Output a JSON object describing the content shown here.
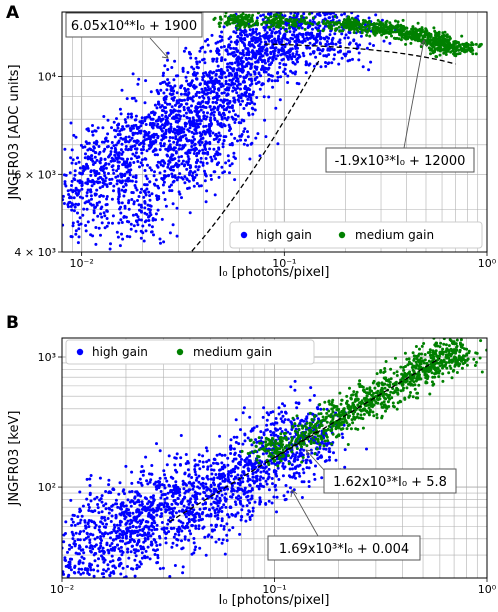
{
  "chart_data": [
    {
      "panel": "A",
      "type": "scatter",
      "xlabel": "I₀ [photons/pixel]",
      "ylabel": "JNGFR03 [ADC units]",
      "xscale": "log",
      "yscale": "log",
      "xlim": [
        0.008,
        1.0
      ],
      "ylim": [
        4000,
        14000
      ],
      "grid": true,
      "x_ticks": [
        {
          "value": 0.01,
          "label": "10⁻²"
        },
        {
          "value": 0.1,
          "label": "10⁻¹"
        },
        {
          "value": 1,
          "label": "10⁰"
        }
      ],
      "y_ticks": [
        {
          "value": 4000,
          "label": "4 × 10³"
        },
        {
          "value": 6000,
          "label": "6 × 10³"
        },
        {
          "value": 10000,
          "label": "10⁴"
        }
      ],
      "legend_placement": "lower-right",
      "series": [
        {
          "name": "high gain",
          "color": "#0000ff",
          "points": [
            [
              0.01,
              5200
            ],
            [
              0.012,
              6000
            ],
            [
              0.015,
              6600
            ],
            [
              0.02,
              7000
            ],
            [
              0.02,
              5000
            ],
            [
              0.025,
              7800
            ],
            [
              0.03,
              8500
            ],
            [
              0.03,
              6500
            ],
            [
              0.04,
              9200
            ],
            [
              0.04,
              7000
            ],
            [
              0.05,
              10000
            ],
            [
              0.05,
              8000
            ],
            [
              0.06,
              10600
            ],
            [
              0.07,
              11200
            ],
            [
              0.08,
              11800
            ],
            [
              0.1,
              12300
            ],
            [
              0.12,
              12800
            ],
            [
              0.15,
              13000
            ],
            [
              0.2,
              13300
            ]
          ]
        },
        {
          "name": "medium gain",
          "color": "#008000",
          "points": [
            [
              0.06,
              13400
            ],
            [
              0.1,
              13300
            ],
            [
              0.2,
              13100
            ],
            [
              0.3,
              12900
            ],
            [
              0.4,
              12600
            ],
            [
              0.5,
              12300
            ],
            [
              0.6,
              11900
            ],
            [
              0.7,
              11600
            ]
          ]
        }
      ],
      "fit_lines": [
        {
          "label": "6.05x10⁴*I₀ + 1900",
          "slope": 60500,
          "intercept": 1900,
          "x_range": [
            0.035,
            0.15
          ]
        },
        {
          "label": "-1.9x10³*I₀ + 12000",
          "slope": -1900,
          "intercept": 12000,
          "x_range": [
            0.08,
            0.7
          ]
        }
      ]
    },
    {
      "panel": "B",
      "type": "scatter",
      "xlabel": "I₀ [photons/pixel]",
      "ylabel": "JNGFR03 [keV]",
      "xscale": "log",
      "yscale": "log",
      "xlim": [
        0.01,
        1.0
      ],
      "ylim": [
        20,
        1400
      ],
      "grid": true,
      "x_ticks": [
        {
          "value": 0.01,
          "label": "10⁻²"
        },
        {
          "value": 0.1,
          "label": "10⁻¹"
        },
        {
          "value": 1,
          "label": "10⁰"
        }
      ],
      "y_ticks": [
        {
          "value": 100,
          "label": "10²"
        },
        {
          "value": 1000,
          "label": "10³"
        }
      ],
      "legend_placement": "upper-left",
      "series": [
        {
          "name": "high gain",
          "color": "#0000ff",
          "points": [
            [
              0.012,
              25
            ],
            [
              0.015,
              45
            ],
            [
              0.02,
              35
            ],
            [
              0.02,
              60
            ],
            [
              0.03,
              55
            ],
            [
              0.03,
              85
            ],
            [
              0.04,
              70
            ],
            [
              0.05,
              90
            ],
            [
              0.06,
              110
            ],
            [
              0.08,
              140
            ],
            [
              0.1,
              180
            ],
            [
              0.12,
              210
            ],
            [
              0.15,
              250
            ]
          ]
        },
        {
          "name": "medium gain",
          "color": "#008000",
          "points": [
            [
              0.1,
              200
            ],
            [
              0.15,
              260
            ],
            [
              0.2,
              340
            ],
            [
              0.25,
              420
            ],
            [
              0.3,
              500
            ],
            [
              0.4,
              650
            ],
            [
              0.5,
              800
            ],
            [
              0.6,
              950
            ],
            [
              0.7,
              1100
            ]
          ]
        }
      ],
      "fit_lines": [
        {
          "label": "1.62x10³*I₀ + 5.8",
          "slope": 1620,
          "intercept": 5.8,
          "x_range": [
            0.1,
            0.6
          ]
        },
        {
          "label": "1.69x10³*I₀ + 0.004",
          "slope": 1690,
          "intercept": 0.004,
          "x_range": [
            0.032,
            0.16
          ]
        }
      ]
    }
  ]
}
